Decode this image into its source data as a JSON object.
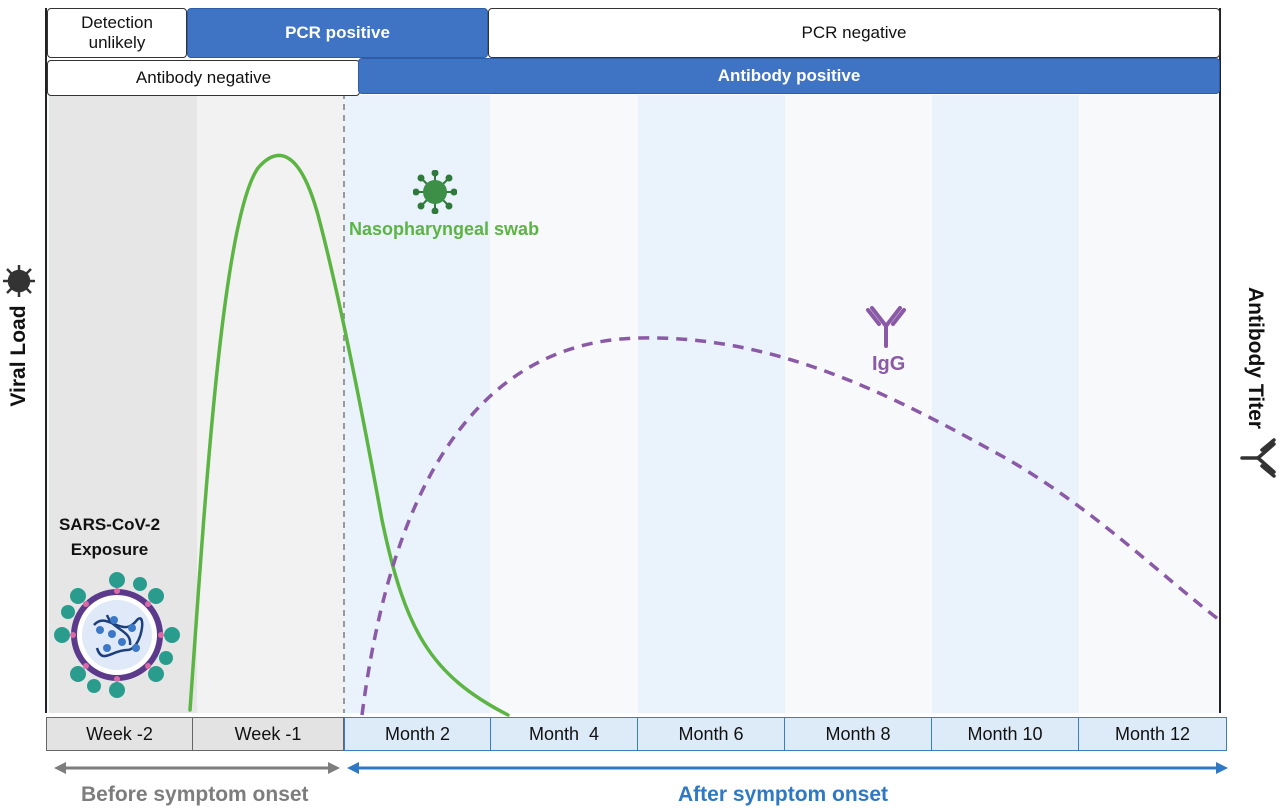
{
  "header": {
    "row1": [
      {
        "id": "detection-unlikely",
        "label_lines": [
          "Detection",
          "unlikely"
        ],
        "style": "white"
      },
      {
        "id": "pcr-positive",
        "label": "PCR positive",
        "style": "blue"
      },
      {
        "id": "pcr-negative",
        "label": "PCR negative",
        "style": "white"
      }
    ],
    "row2": [
      {
        "id": "antibody-negative",
        "label": "Antibody negative",
        "style": "white"
      },
      {
        "id": "antibody-positive",
        "label": "Antibody positive",
        "style": "blue"
      }
    ]
  },
  "axes": {
    "left_label": "Viral Load",
    "right_label": "Antibody Titer"
  },
  "exposure": {
    "line1": "SARS-CoV-2",
    "line2": "Exposure",
    "icon": "coronavirus-particle-icon"
  },
  "curves": {
    "viral": {
      "label": "Nasopharyngeal swab",
      "color": "#5cb443",
      "icon": "virus-icon"
    },
    "antibody": {
      "label": "IgG",
      "color": "#8a5aa6",
      "icon": "antibody-icon"
    }
  },
  "timeline": {
    "cells": [
      {
        "label": "Week -2",
        "group": "before"
      },
      {
        "label": "Week -1",
        "group": "before"
      },
      {
        "label": "Month 2",
        "group": "after"
      },
      {
        "label": "Month  4",
        "group": "after"
      },
      {
        "label": "Month 6",
        "group": "after"
      },
      {
        "label": "Month 8",
        "group": "after"
      },
      {
        "label": "Month 10",
        "group": "after"
      },
      {
        "label": "Month 12",
        "group": "after"
      }
    ]
  },
  "phases": {
    "before": {
      "label": "Before symptom onset",
      "color": "#7d7d7d"
    },
    "after": {
      "label": "After symptom onset",
      "color": "#2f78c4"
    }
  },
  "colors": {
    "header_blue": "#3f74c4",
    "before_band": "#e6e6e6",
    "after_band": "#eaf2fb"
  }
}
